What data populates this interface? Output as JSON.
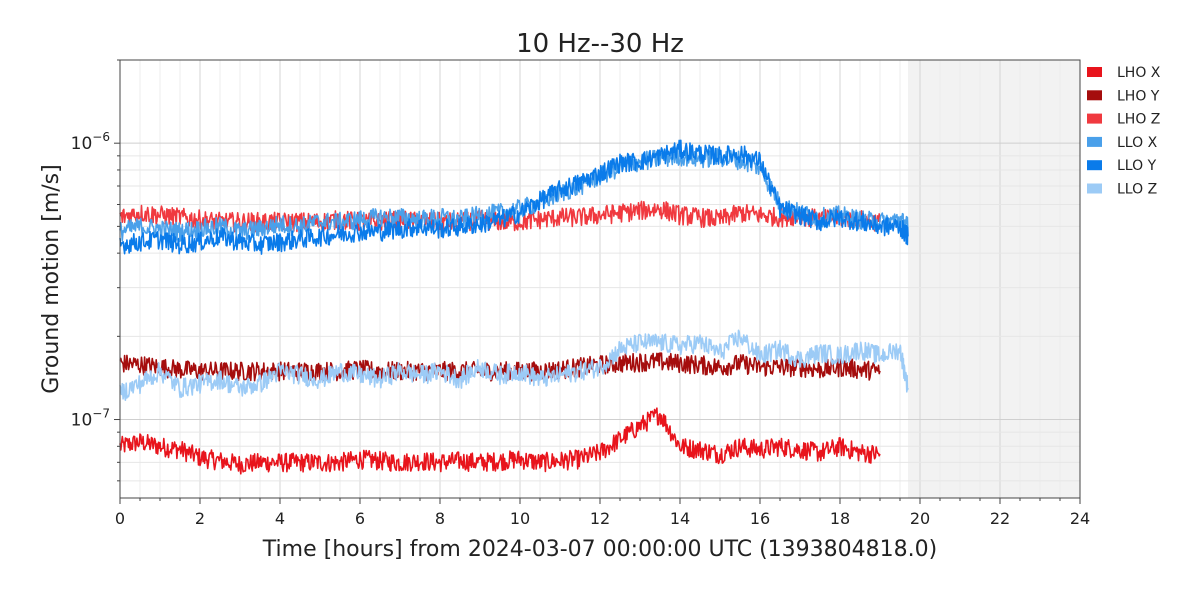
{
  "chart_data": {
    "type": "line",
    "title": "10 Hz--30 Hz",
    "xlabel": "Time [hours] from 2024-03-07 00:00:00 UTC (1393804818.0)",
    "ylabel": "Ground motion [m/s]",
    "xlim": [
      0,
      24
    ],
    "ylim": [
      5.2e-08,
      2e-06
    ],
    "yscale": "log",
    "grid": true,
    "legend_position": "right",
    "shaded_region": {
      "x_from": 19.7,
      "x_to": 24,
      "color": "#f2f2f2"
    },
    "x_ticks": [
      0,
      2,
      4,
      6,
      8,
      10,
      12,
      14,
      16,
      18,
      20,
      22,
      24
    ],
    "x_tick_labels": [
      "0",
      "2",
      "4",
      "6",
      "8",
      "10",
      "12",
      "14",
      "16",
      "18",
      "20",
      "22",
      "24"
    ],
    "y_ticks": [
      1e-07,
      1e-06
    ],
    "y_tick_labels": [
      {
        "base": "10",
        "exp": "−7"
      },
      {
        "base": "10",
        "exp": "−6"
      }
    ],
    "series": [
      {
        "name": "LHO X",
        "color": "#e8141c",
        "x": [
          0.0,
          0.5,
          1.0,
          1.5,
          2.0,
          2.5,
          3.0,
          3.5,
          4.0,
          4.5,
          5.0,
          5.5,
          6.0,
          6.5,
          7.0,
          7.5,
          8.0,
          8.5,
          9.0,
          9.5,
          10.0,
          10.5,
          11.0,
          11.5,
          12.0,
          12.5,
          13.0,
          13.5,
          14.0,
          14.5,
          15.0,
          15.5,
          16.0,
          16.5,
          17.0,
          17.5,
          18.0,
          18.5,
          19.0
        ],
        "y": [
          8e-08,
          8.3e-08,
          8e-08,
          7.8e-08,
          7.3e-08,
          7.1e-08,
          6.9e-08,
          7e-08,
          7e-08,
          7e-08,
          7e-08,
          7e-08,
          7.2e-08,
          7.1e-08,
          7e-08,
          7.1e-08,
          7e-08,
          7.1e-08,
          7e-08,
          7.1e-08,
          7.2e-08,
          7e-08,
          7.1e-08,
          7.2e-08,
          7.6e-08,
          8.5e-08,
          9.5e-08,
          1.05e-07,
          8e-08,
          7.8e-08,
          7.5e-08,
          8e-08,
          7.8e-08,
          8e-08,
          7.8e-08,
          7.6e-08,
          8e-08,
          7.6e-08,
          7.5e-08
        ]
      },
      {
        "name": "LHO Y",
        "color": "#a50d0d",
        "x": [
          0.0,
          0.5,
          1.0,
          1.5,
          2.0,
          2.5,
          3.0,
          3.5,
          4.0,
          4.5,
          5.0,
          5.5,
          6.0,
          6.5,
          7.0,
          7.5,
          8.0,
          8.5,
          9.0,
          9.5,
          10.0,
          10.5,
          11.0,
          11.5,
          12.0,
          12.5,
          13.0,
          13.5,
          14.0,
          14.5,
          15.0,
          15.5,
          16.0,
          16.5,
          17.0,
          17.5,
          18.0,
          18.5,
          19.0
        ],
        "y": [
          1.6e-07,
          1.58e-07,
          1.55e-07,
          1.52e-07,
          1.5e-07,
          1.5e-07,
          1.5e-07,
          1.5e-07,
          1.5e-07,
          1.5e-07,
          1.5e-07,
          1.5e-07,
          1.52e-07,
          1.5e-07,
          1.5e-07,
          1.5e-07,
          1.5e-07,
          1.5e-07,
          1.5e-07,
          1.5e-07,
          1.5e-07,
          1.5e-07,
          1.52e-07,
          1.55e-07,
          1.58e-07,
          1.6e-07,
          1.62e-07,
          1.62e-07,
          1.6e-07,
          1.58e-07,
          1.55e-07,
          1.6e-07,
          1.55e-07,
          1.55e-07,
          1.55e-07,
          1.52e-07,
          1.55e-07,
          1.52e-07,
          1.5e-07
        ]
      },
      {
        "name": "LHO Z",
        "color": "#f0393f",
        "x": [
          0.0,
          0.5,
          1.0,
          1.5,
          2.0,
          2.5,
          3.0,
          3.5,
          4.0,
          4.5,
          5.0,
          5.5,
          6.0,
          6.5,
          7.0,
          7.5,
          8.0,
          8.5,
          9.0,
          9.5,
          10.0,
          10.5,
          11.0,
          11.5,
          12.0,
          12.5,
          13.0,
          13.5,
          14.0,
          14.5,
          15.0,
          15.5,
          16.0,
          16.5,
          17.0,
          17.5,
          18.0,
          18.5,
          19.0
        ],
        "y": [
          5.4e-07,
          5.6e-07,
          5.5e-07,
          5.4e-07,
          5.3e-07,
          5.2e-07,
          5.2e-07,
          5.2e-07,
          5.2e-07,
          5.2e-07,
          5.2e-07,
          5.3e-07,
          5.2e-07,
          5.2e-07,
          5.3e-07,
          5.2e-07,
          5.2e-07,
          5.2e-07,
          5.3e-07,
          5.2e-07,
          5.2e-07,
          5.3e-07,
          5.4e-07,
          5.4e-07,
          5.5e-07,
          5.6e-07,
          5.7e-07,
          5.8e-07,
          5.5e-07,
          5.4e-07,
          5.3e-07,
          5.6e-07,
          5.5e-07,
          5.4e-07,
          5.5e-07,
          5.3e-07,
          5.4e-07,
          5.3e-07,
          5.2e-07
        ]
      },
      {
        "name": "LLO X",
        "color": "#4aa0ea",
        "x": [
          0.0,
          0.5,
          1.0,
          1.5,
          2.0,
          2.5,
          3.0,
          3.5,
          4.0,
          4.5,
          5.0,
          5.5,
          6.0,
          6.5,
          7.0,
          7.5,
          8.0,
          8.5,
          9.0,
          9.5,
          10.0,
          10.5,
          11.0,
          11.5,
          12.0,
          12.5,
          13.0,
          13.5,
          14.0,
          14.5,
          15.0,
          15.5,
          16.0,
          16.5,
          17.0,
          17.5,
          18.0,
          18.5,
          19.0,
          19.5,
          19.7
        ],
        "y": [
          4.8e-07,
          5e-07,
          4.9e-07,
          4.8e-07,
          4.9e-07,
          5e-07,
          4.8e-07,
          4.9e-07,
          5.1e-07,
          5e-07,
          5.2e-07,
          5.2e-07,
          5.3e-07,
          5.4e-07,
          5.4e-07,
          5.3e-07,
          5.4e-07,
          5.3e-07,
          5.5e-07,
          5.6e-07,
          5.8e-07,
          6.1e-07,
          6.6e-07,
          7e-07,
          7.6e-07,
          8.2e-07,
          8.6e-07,
          8.8e-07,
          9e-07,
          8.8e-07,
          8.9e-07,
          8.7e-07,
          8.2e-07,
          6e-07,
          5.6e-07,
          5.4e-07,
          5.5e-07,
          5.3e-07,
          5.2e-07,
          5.3e-07,
          5e-07
        ]
      },
      {
        "name": "LLO Y",
        "color": "#0a7bea",
        "x": [
          0.0,
          0.5,
          1.0,
          1.5,
          2.0,
          2.5,
          3.0,
          3.5,
          4.0,
          4.5,
          5.0,
          5.5,
          6.0,
          6.5,
          7.0,
          7.5,
          8.0,
          8.5,
          9.0,
          9.5,
          10.0,
          10.5,
          11.0,
          11.5,
          12.0,
          12.5,
          13.0,
          13.5,
          14.0,
          14.5,
          15.0,
          15.5,
          16.0,
          16.5,
          17.0,
          17.5,
          18.0,
          18.5,
          19.0,
          19.5,
          19.7
        ],
        "y": [
          4.3e-07,
          4.4e-07,
          4.5e-07,
          4.3e-07,
          4.4e-07,
          4.6e-07,
          4.4e-07,
          4.3e-07,
          4.4e-07,
          4.5e-07,
          4.6e-07,
          4.7e-07,
          4.8e-07,
          4.8e-07,
          4.9e-07,
          5e-07,
          4.9e-07,
          5e-07,
          5.1e-07,
          5.3e-07,
          5.6e-07,
          6.2e-07,
          6.8e-07,
          7.2e-07,
          7.8e-07,
          8.5e-07,
          8.6e-07,
          9e-07,
          9.5e-07,
          9.2e-07,
          9e-07,
          9.2e-07,
          8.6e-07,
          5.8e-07,
          5.5e-07,
          5.2e-07,
          5.4e-07,
          5.2e-07,
          5e-07,
          5e-07,
          4.6e-07
        ]
      },
      {
        "name": "LLO Z",
        "color": "#9ccbf6",
        "x": [
          0.0,
          0.5,
          1.0,
          1.5,
          2.0,
          2.5,
          3.0,
          3.5,
          4.0,
          4.5,
          5.0,
          5.5,
          6.0,
          6.5,
          7.0,
          7.5,
          8.0,
          8.5,
          9.0,
          9.5,
          10.0,
          10.5,
          11.0,
          11.5,
          12.0,
          12.5,
          13.0,
          13.5,
          14.0,
          14.5,
          15.0,
          15.5,
          16.0,
          16.5,
          17.0,
          17.5,
          18.0,
          18.5,
          19.0,
          19.5,
          19.7
        ],
        "y": [
          1.25e-07,
          1.35e-07,
          1.5e-07,
          1.3e-07,
          1.35e-07,
          1.4e-07,
          1.3e-07,
          1.35e-07,
          1.5e-07,
          1.45e-07,
          1.4e-07,
          1.5e-07,
          1.45e-07,
          1.4e-07,
          1.5e-07,
          1.45e-07,
          1.5e-07,
          1.4e-07,
          1.55e-07,
          1.45e-07,
          1.5e-07,
          1.4e-07,
          1.45e-07,
          1.5e-07,
          1.55e-07,
          1.8e-07,
          1.9e-07,
          1.9e-07,
          1.85e-07,
          1.9e-07,
          1.75e-07,
          2e-07,
          1.7e-07,
          1.8e-07,
          1.65e-07,
          1.75e-07,
          1.7e-07,
          1.8e-07,
          1.7e-07,
          1.8e-07,
          1.3e-07
        ]
      }
    ]
  }
}
